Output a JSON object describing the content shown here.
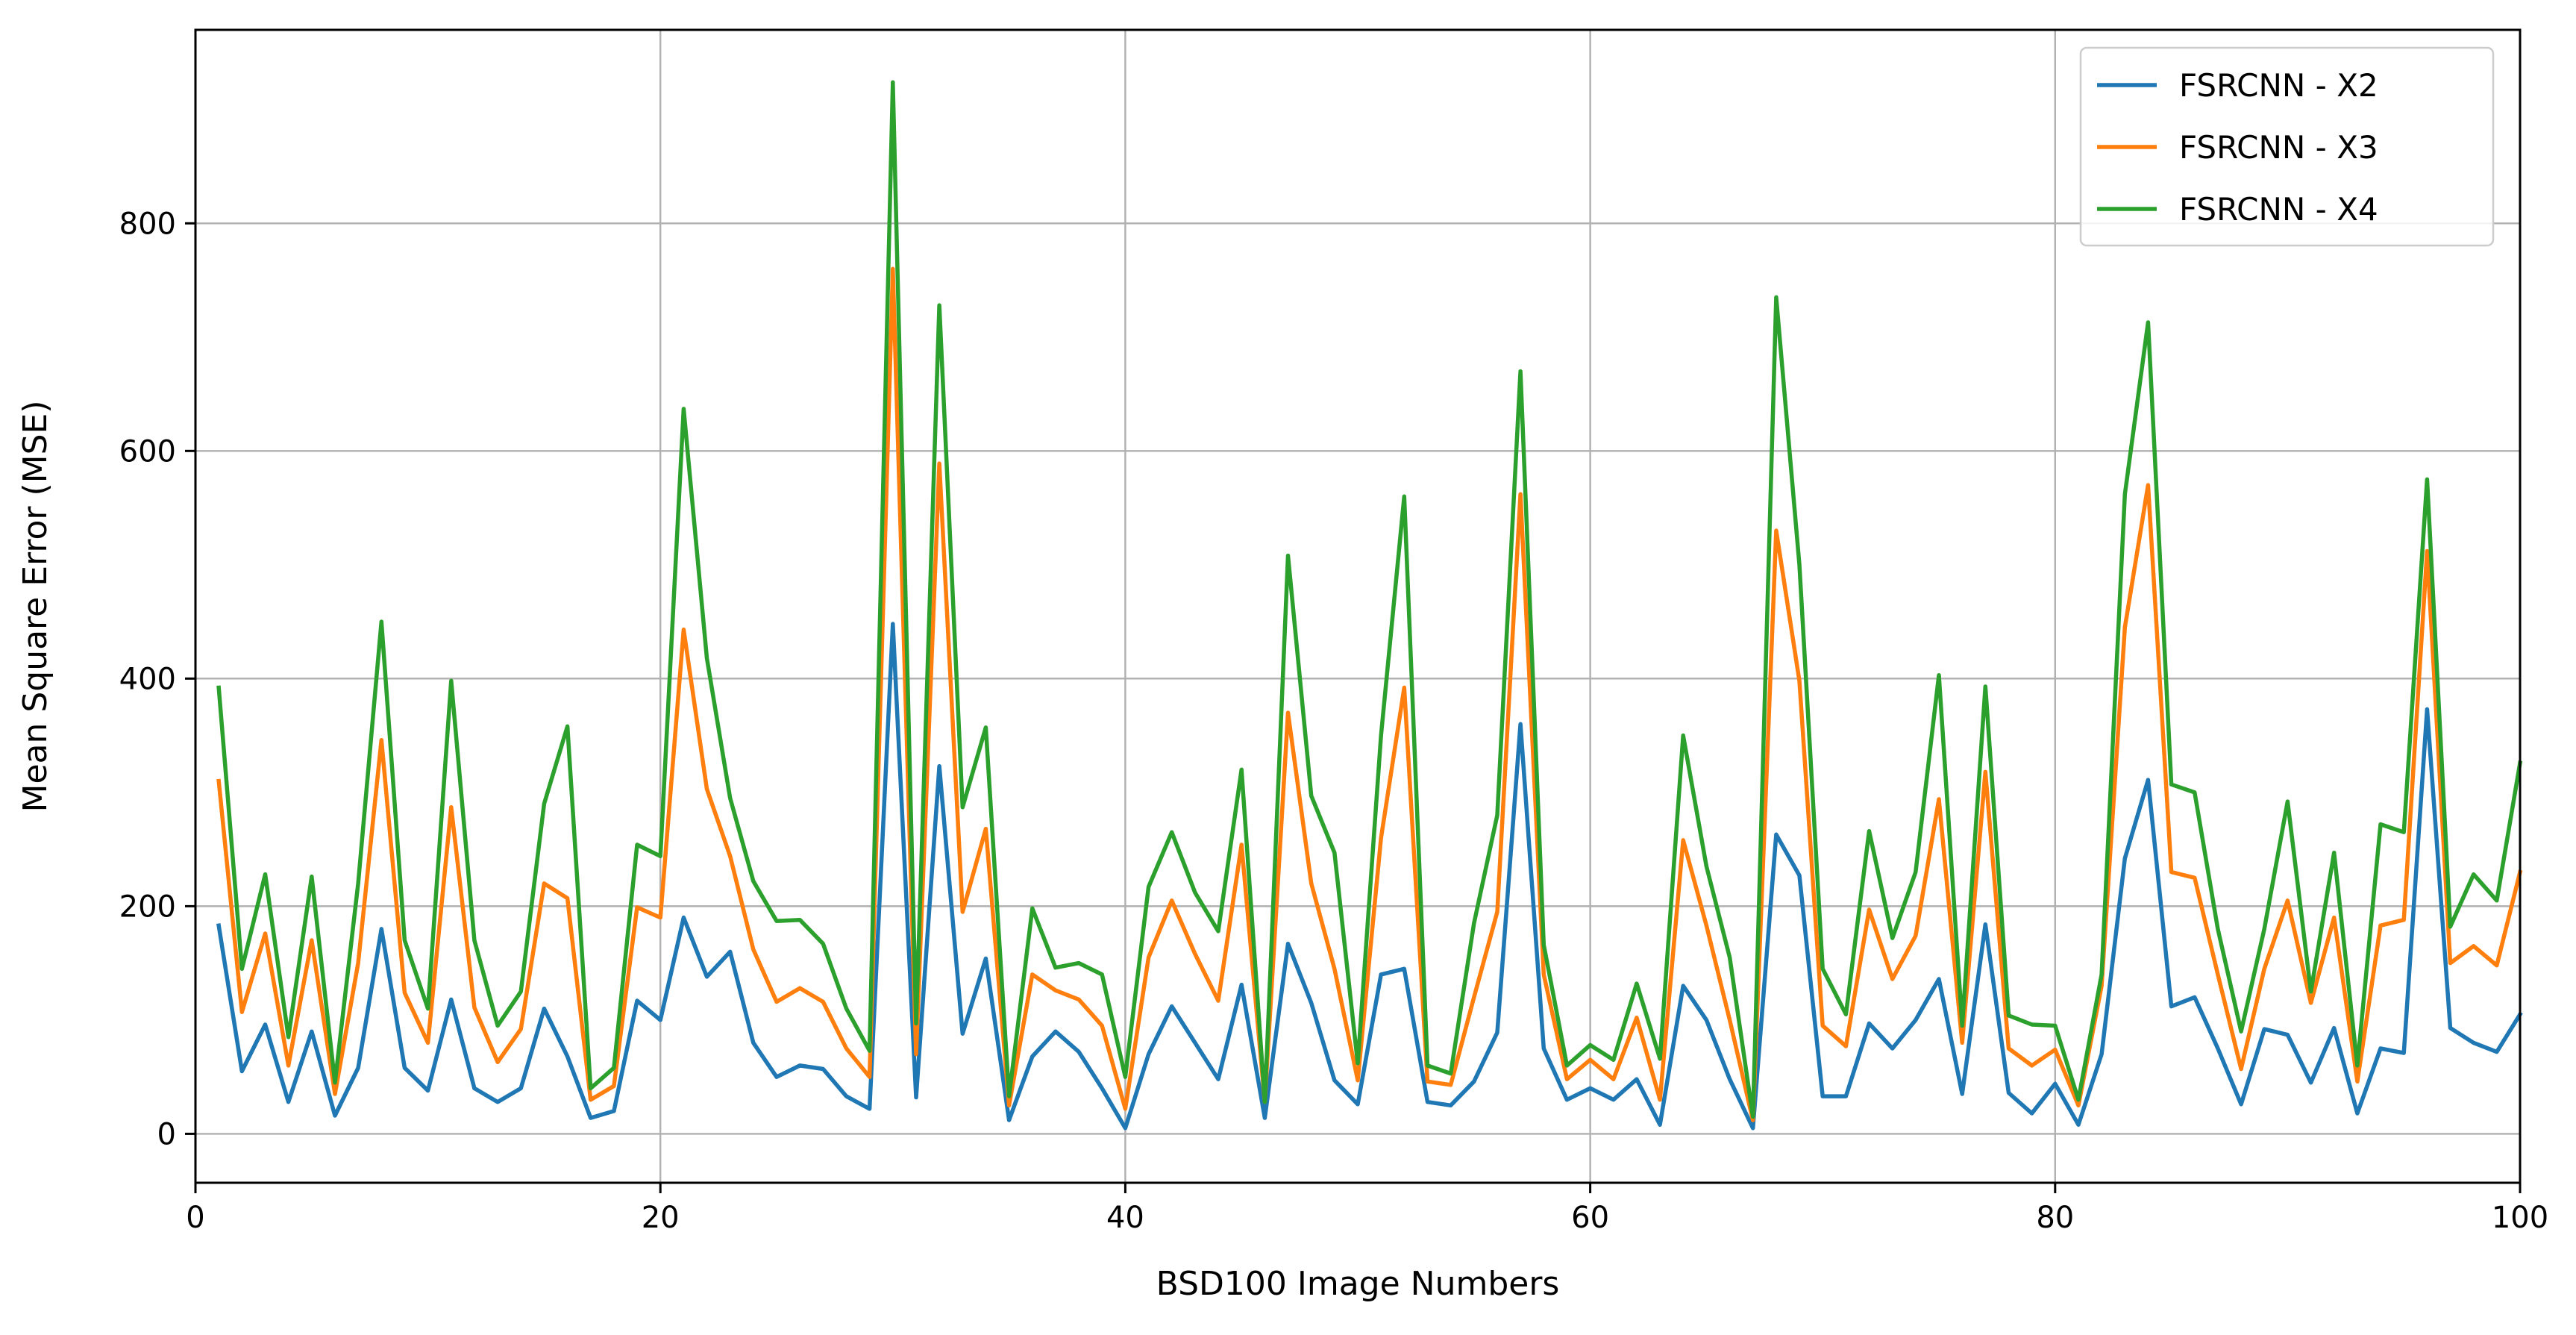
{
  "chart_data": {
    "type": "line",
    "title": "",
    "xlabel": "BSD100 Image Numbers",
    "ylabel": "Mean Square Error (MSE)",
    "xlim": [
      0,
      100
    ],
    "ylim": [
      -43,
      970
    ],
    "xticks": [
      0,
      20,
      40,
      60,
      80,
      100
    ],
    "yticks": [
      0,
      200,
      400,
      600,
      800
    ],
    "grid": true,
    "legend_position": "top-right",
    "x": [
      1,
      2,
      3,
      4,
      5,
      6,
      7,
      8,
      9,
      10,
      11,
      12,
      13,
      14,
      15,
      16,
      17,
      18,
      19,
      20,
      21,
      22,
      23,
      24,
      25,
      26,
      27,
      28,
      29,
      30,
      31,
      32,
      33,
      34,
      35,
      36,
      37,
      38,
      39,
      40,
      41,
      42,
      43,
      44,
      45,
      46,
      47,
      48,
      49,
      50,
      51,
      52,
      53,
      54,
      55,
      56,
      57,
      58,
      59,
      60,
      61,
      62,
      63,
      64,
      65,
      66,
      67,
      68,
      69,
      70,
      71,
      72,
      73,
      74,
      75,
      76,
      77,
      78,
      79,
      80,
      81,
      82,
      83,
      84,
      85,
      86,
      87,
      88,
      89,
      90,
      91,
      92,
      93,
      94,
      95,
      96,
      97,
      98,
      99,
      100
    ],
    "series": [
      {
        "name": "FSRCNN - X2",
        "color": "#1f77b4",
        "values": [
          183,
          55,
          96,
          28,
          90,
          16,
          58,
          180,
          58,
          38,
          118,
          40,
          28,
          40,
          110,
          68,
          14,
          20,
          117,
          100,
          190,
          138,
          160,
          80,
          50,
          60,
          57,
          33,
          22,
          448,
          32,
          323,
          88,
          154,
          12,
          68,
          90,
          72,
          40,
          5,
          70,
          112,
          80,
          48,
          131,
          14,
          167,
          115,
          47,
          26,
          140,
          145,
          28,
          25,
          46,
          89,
          360,
          75,
          30,
          40,
          30,
          48,
          8,
          130,
          100,
          48,
          5,
          263,
          227,
          33,
          33,
          97,
          75,
          100,
          136,
          35,
          184,
          36,
          18,
          44,
          8,
          70,
          242,
          311,
          112,
          120,
          75,
          26,
          92,
          87,
          45,
          93,
          18,
          75,
          71,
          373,
          93,
          80,
          72,
          105
        ]
      },
      {
        "name": "FSRCNN - X3",
        "color": "#ff7f0e",
        "values": [
          310,
          107,
          176,
          60,
          170,
          35,
          150,
          346,
          124,
          80,
          287,
          111,
          63,
          92,
          220,
          207,
          30,
          42,
          199,
          190,
          443,
          303,
          244,
          162,
          116,
          128,
          116,
          75,
          50,
          760,
          70,
          589,
          195,
          268,
          25,
          140,
          126,
          118,
          95,
          22,
          155,
          205,
          158,
          117,
          254,
          28,
          370,
          220,
          145,
          47,
          260,
          392,
          46,
          43,
          120,
          195,
          562,
          140,
          48,
          65,
          48,
          102,
          30,
          258,
          183,
          100,
          12,
          530,
          398,
          95,
          77,
          197,
          136,
          174,
          294,
          80,
          318,
          75,
          60,
          74,
          25,
          130,
          445,
          570,
          230,
          225,
          140,
          57,
          145,
          205,
          115,
          190,
          46,
          183,
          188,
          512,
          150,
          165,
          148,
          230
        ]
      },
      {
        "name": "FSRCNN - X4",
        "color": "#2ca02c",
        "values": [
          392,
          145,
          228,
          85,
          226,
          45,
          220,
          450,
          170,
          110,
          398,
          170,
          95,
          125,
          290,
          358,
          40,
          58,
          254,
          244,
          637,
          418,
          295,
          222,
          187,
          188,
          167,
          110,
          73,
          924,
          97,
          728,
          287,
          357,
          33,
          198,
          146,
          150,
          140,
          50,
          217,
          265,
          212,
          178,
          320,
          28,
          508,
          297,
          247,
          62,
          350,
          560,
          60,
          53,
          185,
          280,
          670,
          166,
          60,
          78,
          65,
          132,
          66,
          350,
          235,
          155,
          15,
          735,
          500,
          145,
          105,
          266,
          172,
          230,
          403,
          95,
          393,
          104,
          96,
          95,
          30,
          140,
          562,
          713,
          307,
          300,
          180,
          90,
          180,
          292,
          125,
          247,
          60,
          272,
          265,
          575,
          182,
          228,
          205,
          326
        ]
      }
    ]
  }
}
